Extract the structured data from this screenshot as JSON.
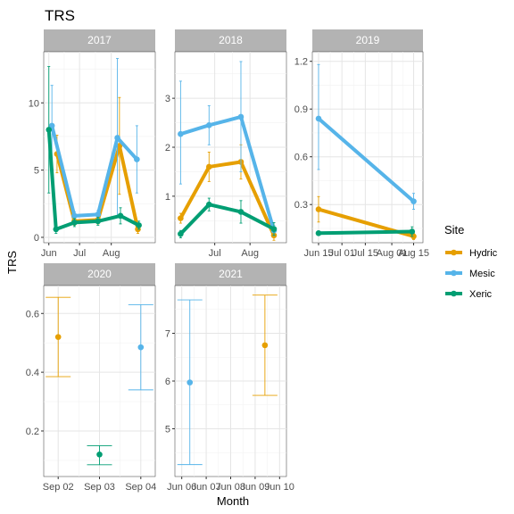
{
  "chart_data": {
    "type": "line",
    "title": "TRS",
    "xlabel": "Month",
    "ylabel": "TRS",
    "grid": true,
    "legend": {
      "title": "Site",
      "placement": "right",
      "entries": [
        "Hydric",
        "Mesic",
        "Xeric"
      ]
    },
    "colors": {
      "Hydric": "#E69F00",
      "Mesic": "#56B4E9",
      "Xeric": "#009E73",
      "strip": "#b3b3b3",
      "grid": "#e5e5e5"
    },
    "panels": [
      {
        "label": "2017",
        "xlim": [
          -5,
          104
        ],
        "ylim": [
          -0.4,
          13.8
        ],
        "xticks": [
          {
            "v": 0,
            "label": "Jun"
          },
          {
            "v": 30,
            "label": "Jul"
          },
          {
            "v": 61,
            "label": "Aug"
          }
        ],
        "yticks": [
          {
            "v": 0,
            "label": "0"
          },
          {
            "v": 5,
            "label": "5"
          },
          {
            "v": 10,
            "label": "10"
          }
        ],
        "series": [
          {
            "name": "Hydric",
            "points": [
              {
                "x": 8,
                "y": 6.2,
                "lo": 4.8,
                "hi": 7.6
              },
              {
                "x": 25,
                "y": 1.2,
                "lo": 0.9,
                "hi": 1.5
              },
              {
                "x": 48,
                "y": 1.3,
                "lo": 1.0,
                "hi": 1.6
              },
              {
                "x": 69,
                "y": 6.8,
                "lo": 3.2,
                "hi": 10.4
              },
              {
                "x": 87,
                "y": 0.6,
                "lo": 0.3,
                "hi": 0.9
              }
            ]
          },
          {
            "name": "Mesic",
            "points": [
              {
                "x": 3,
                "y": 8.3,
                "lo": 5.0,
                "hi": 11.3
              },
              {
                "x": 25,
                "y": 1.6,
                "lo": 1.3,
                "hi": 1.9
              },
              {
                "x": 48,
                "y": 1.7,
                "lo": 1.4,
                "hi": 2.0
              },
              {
                "x": 67,
                "y": 7.4,
                "lo": 1.5,
                "hi": 13.3
              },
              {
                "x": 86,
                "y": 5.8,
                "lo": 3.3,
                "hi": 8.3
              }
            ]
          },
          {
            "name": "Xeric",
            "points": [
              {
                "x": 0,
                "y": 8.0,
                "lo": 3.3,
                "hi": 12.7
              },
              {
                "x": 7,
                "y": 0.6,
                "lo": 0.3,
                "hi": 0.9
              },
              {
                "x": 25,
                "y": 1.1,
                "lo": 0.8,
                "hi": 1.4
              },
              {
                "x": 48,
                "y": 1.2,
                "lo": 0.9,
                "hi": 1.5
              },
              {
                "x": 70,
                "y": 1.6,
                "lo": 1.0,
                "hi": 2.2
              },
              {
                "x": 88,
                "y": 0.9,
                "lo": 0.6,
                "hi": 1.2
              }
            ]
          }
        ]
      },
      {
        "label": "2018",
        "xlim": [
          -5,
          93
        ],
        "ylim": [
          0.05,
          3.95
        ],
        "xticks": [
          {
            "v": 30,
            "label": "Jul"
          },
          {
            "v": 61,
            "label": "Aug"
          }
        ],
        "yticks": [
          {
            "v": 1,
            "label": "1"
          },
          {
            "v": 2,
            "label": "2"
          },
          {
            "v": 3,
            "label": "3"
          }
        ],
        "series": [
          {
            "name": "Hydric",
            "points": [
              {
                "x": 0,
                "y": 0.55,
                "lo": 0.45,
                "hi": 0.65
              },
              {
                "x": 25,
                "y": 1.6,
                "lo": 1.3,
                "hi": 1.9
              },
              {
                "x": 53,
                "y": 1.7,
                "lo": 1.35,
                "hi": 2.05
              },
              {
                "x": 82,
                "y": 0.2,
                "lo": 0.1,
                "hi": 0.3
              }
            ]
          },
          {
            "name": "Mesic",
            "points": [
              {
                "x": 0,
                "y": 2.27,
                "lo": 1.25,
                "hi": 3.35
              },
              {
                "x": 25,
                "y": 2.45,
                "lo": 2.05,
                "hi": 2.85
              },
              {
                "x": 53,
                "y": 2.62,
                "lo": 1.5,
                "hi": 3.75
              },
              {
                "x": 82,
                "y": 0.3,
                "lo": 0.2,
                "hi": 0.4
              }
            ]
          },
          {
            "name": "Xeric",
            "points": [
              {
                "x": 0,
                "y": 0.23,
                "lo": 0.15,
                "hi": 0.3
              },
              {
                "x": 25,
                "y": 0.83,
                "lo": 0.7,
                "hi": 0.96
              },
              {
                "x": 53,
                "y": 0.68,
                "lo": 0.45,
                "hi": 0.91
              },
              {
                "x": 82,
                "y": 0.33,
                "lo": 0.2,
                "hi": 0.46
              }
            ]
          }
        ]
      },
      {
        "label": "2019",
        "xlim": [
          -4,
          67
        ],
        "ylim": [
          0.06,
          1.26
        ],
        "xticks": [
          {
            "v": 0,
            "label": "Jun 15"
          },
          {
            "v": 15,
            "label": "Jul 01"
          },
          {
            "v": 30,
            "label": "Jul 15"
          },
          {
            "v": 47,
            "label": "Aug 01"
          },
          {
            "v": 61,
            "label": "Aug 15"
          }
        ],
        "yticks": [
          {
            "v": 0.3,
            "label": "0.3"
          },
          {
            "v": 0.6,
            "label": "0.6"
          },
          {
            "v": 0.9,
            "label": "0.9"
          },
          {
            "v": 1.2,
            "label": "1.2"
          }
        ],
        "series": [
          {
            "name": "Hydric",
            "points": [
              {
                "x": 0,
                "y": 0.27,
                "lo": 0.19,
                "hi": 0.35
              },
              {
                "x": 61,
                "y": 0.1,
                "lo": 0.08,
                "hi": 0.12
              }
            ]
          },
          {
            "name": "Mesic",
            "points": [
              {
                "x": 0,
                "y": 0.84,
                "lo": 0.52,
                "hi": 1.18
              },
              {
                "x": 61,
                "y": 0.32,
                "lo": 0.27,
                "hi": 0.37
              }
            ]
          },
          {
            "name": "Xeric",
            "points": [
              {
                "x": 0,
                "y": 0.12,
                "lo": 0.11,
                "hi": 0.13
              },
              {
                "x": 60,
                "y": 0.13,
                "lo": 0.1,
                "hi": 0.16
              }
            ]
          }
        ]
      },
      {
        "label": "2020",
        "xlim": [
          -0.35,
          2.35
        ],
        "ylim": [
          0.045,
          0.695
        ],
        "xticks": [
          {
            "v": 0,
            "label": "Sep 02"
          },
          {
            "v": 1,
            "label": "Sep 03"
          },
          {
            "v": 2,
            "label": "Sep 04"
          }
        ],
        "yticks": [
          {
            "v": 0.2,
            "label": "0.2"
          },
          {
            "v": 0.4,
            "label": "0.4"
          },
          {
            "v": 0.6,
            "label": "0.6"
          }
        ],
        "series": [
          {
            "name": "Hydric",
            "points": [
              {
                "x": 0,
                "y": 0.52,
                "lo": 0.385,
                "hi": 0.655
              }
            ]
          },
          {
            "name": "Mesic",
            "points": [
              {
                "x": 2,
                "y": 0.485,
                "lo": 0.34,
                "hi": 0.63
              }
            ]
          },
          {
            "name": "Xeric",
            "points": [
              {
                "x": 1,
                "y": 0.12,
                "lo": 0.085,
                "hi": 0.15
              }
            ]
          }
        ]
      },
      {
        "label": "2021",
        "xlim": [
          -0.28,
          4.28
        ],
        "ylim": [
          4.0,
          8.0
        ],
        "xticks": [
          {
            "v": 0,
            "label": "Jun 06"
          },
          {
            "v": 1,
            "label": "Jun 07"
          },
          {
            "v": 2,
            "label": "Jun 08"
          },
          {
            "v": 3,
            "label": "Jun 09"
          },
          {
            "v": 4,
            "label": "Jun 10"
          }
        ],
        "yticks": [
          {
            "v": 5,
            "label": "5"
          },
          {
            "v": 6,
            "label": "6"
          },
          {
            "v": 7,
            "label": "7"
          }
        ],
        "series": [
          {
            "name": "Hydric",
            "points": [
              {
                "x": 3.4,
                "y": 6.75,
                "lo": 5.7,
                "hi": 7.8
              }
            ]
          },
          {
            "name": "Mesic",
            "points": [
              {
                "x": 0.33,
                "y": 5.97,
                "lo": 4.25,
                "hi": 7.7
              }
            ]
          }
        ]
      }
    ]
  }
}
